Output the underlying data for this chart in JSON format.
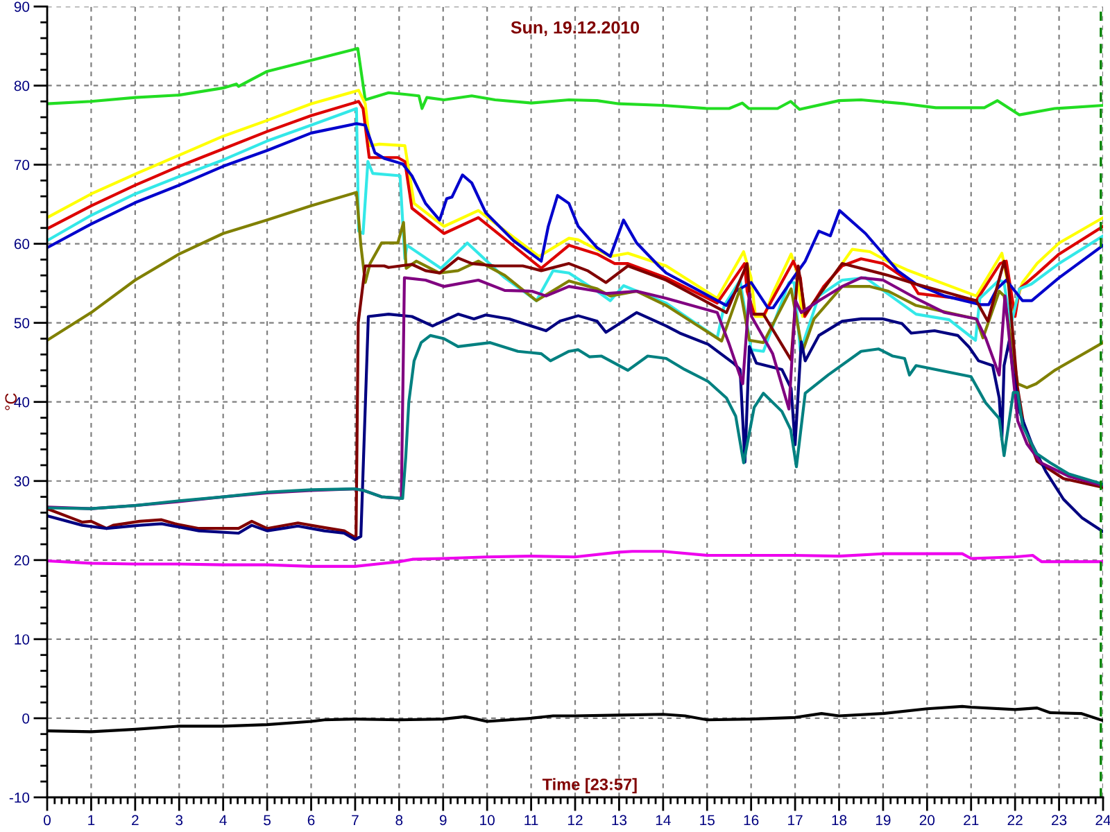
{
  "chart_data": {
    "type": "line",
    "title": "Sun, 19.12.2010",
    "xlabel": "Time [23:57]",
    "ylabel": "°C",
    "xlim": [
      0,
      24
    ],
    "ylim": [
      -10,
      90
    ],
    "xticks": [
      0,
      1,
      2,
      3,
      4,
      5,
      6,
      7,
      8,
      9,
      10,
      11,
      12,
      13,
      14,
      15,
      16,
      17,
      18,
      19,
      20,
      21,
      22,
      23,
      24,
      {
        "value": 0.17,
        "label": null
      },
      {
        "value": 0.33,
        "label": null
      },
      {
        "value": 0.5,
        "label": null
      },
      {
        "value": 0.67,
        "label": null
      },
      {
        "value": 0.83,
        "label": null
      },
      {
        "value": 1.17,
        "label": null
      },
      {
        "value": 1.33,
        "label": null
      },
      {
        "value": 1.5,
        "label": null
      },
      {
        "value": 1.67,
        "label": null
      },
      {
        "value": 1.83,
        "label": null
      },
      {
        "value": 2.17,
        "label": null
      },
      {
        "value": 2.33,
        "label": null
      },
      {
        "value": 2.5,
        "label": null
      },
      {
        "value": 2.67,
        "label": null
      },
      {
        "value": 2.83,
        "label": null
      },
      {
        "value": 3.17,
        "label": null
      },
      {
        "value": 3.33,
        "label": null
      },
      {
        "value": 3.5,
        "label": null
      },
      {
        "value": 3.67,
        "label": null
      },
      {
        "value": 3.83,
        "label": null
      },
      {
        "value": 4.17,
        "label": null
      },
      {
        "value": 4.33,
        "label": null
      },
      {
        "value": 4.5,
        "label": null
      },
      {
        "value": 4.67,
        "label": null
      },
      {
        "value": 4.83,
        "label": null
      },
      {
        "value": 5.17,
        "label": null
      },
      {
        "value": 5.33,
        "label": null
      },
      {
        "value": 5.5,
        "label": null
      },
      {
        "value": 5.67,
        "label": null
      },
      {
        "value": 5.83,
        "label": null
      },
      {
        "value": 6.17,
        "label": null
      },
      {
        "value": 6.33,
        "label": null
      },
      {
        "value": 6.5,
        "label": null
      },
      {
        "value": 6.67,
        "label": null
      },
      {
        "value": 6.83,
        "label": null
      },
      {
        "value": 7.17,
        "label": null
      },
      {
        "value": 7.33,
        "label": null
      },
      {
        "value": 7.5,
        "label": null
      },
      {
        "value": 7.67,
        "label": null
      },
      {
        "value": 7.83,
        "label": null
      },
      {
        "value": 8.17,
        "label": null
      },
      {
        "value": 8.33,
        "label": null
      },
      {
        "value": 8.5,
        "label": null
      },
      {
        "value": 8.67,
        "label": null
      },
      {
        "value": 8.83,
        "label": null
      },
      {
        "value": 9.17,
        "label": null
      },
      {
        "value": 9.33,
        "label": null
      },
      {
        "value": 9.5,
        "label": null
      },
      {
        "value": 9.67,
        "label": null
      },
      {
        "value": 9.83,
        "label": null
      },
      {
        "value": 10.17,
        "label": null
      },
      {
        "value": 10.33,
        "label": null
      },
      {
        "value": 10.5,
        "label": null
      },
      {
        "value": 10.67,
        "label": null
      },
      {
        "value": 10.83,
        "label": null
      },
      {
        "value": 11.17,
        "label": null
      },
      {
        "value": 11.33,
        "label": null
      },
      {
        "value": 11.5,
        "label": null
      },
      {
        "value": 11.67,
        "label": null
      },
      {
        "value": 11.83,
        "label": null
      },
      {
        "value": 12.17,
        "label": null
      },
      {
        "value": 12.33,
        "label": null
      },
      {
        "value": 12.5,
        "label": null
      },
      {
        "value": 12.67,
        "label": null
      },
      {
        "value": 12.83,
        "label": null
      },
      {
        "value": 13.17,
        "label": null
      },
      {
        "value": 13.33,
        "label": null
      },
      {
        "value": 13.5,
        "label": null
      },
      {
        "value": 13.67,
        "label": null
      },
      {
        "value": 13.83,
        "label": null
      },
      {
        "value": 14.17,
        "label": null
      },
      {
        "value": 14.33,
        "label": null
      },
      {
        "value": 14.5,
        "label": null
      },
      {
        "value": 14.67,
        "label": null
      },
      {
        "value": 14.83,
        "label": null
      },
      {
        "value": 15.17,
        "label": null
      },
      {
        "value": 15.33,
        "label": null
      },
      {
        "value": 15.5,
        "label": null
      },
      {
        "value": 15.67,
        "label": null
      },
      {
        "value": 15.83,
        "label": null
      },
      {
        "value": 16.17,
        "label": null
      },
      {
        "value": 16.33,
        "label": null
      },
      {
        "value": 16.5,
        "label": null
      },
      {
        "value": 16.67,
        "label": null
      },
      {
        "value": 16.83,
        "label": null
      },
      {
        "value": 17.17,
        "label": null
      },
      {
        "value": 17.33,
        "label": null
      },
      {
        "value": 17.5,
        "label": null
      },
      {
        "value": 17.67,
        "label": null
      },
      {
        "value": 17.83,
        "label": null
      },
      {
        "value": 18.17,
        "label": null
      },
      {
        "value": 18.33,
        "label": null
      },
      {
        "value": 18.5,
        "label": null
      },
      {
        "value": 18.67,
        "label": null
      },
      {
        "value": 18.83,
        "label": null
      },
      {
        "value": 19.17,
        "label": null
      },
      {
        "value": 19.33,
        "label": null
      },
      {
        "value": 19.5,
        "label": null
      },
      {
        "value": 19.67,
        "label": null
      },
      {
        "value": 19.83,
        "label": null
      },
      {
        "value": 20.17,
        "label": null
      },
      {
        "value": 20.33,
        "label": null
      },
      {
        "value": 20.5,
        "label": null
      },
      {
        "value": 20.67,
        "label": null
      },
      {
        "value": 20.83,
        "label": null
      },
      {
        "value": 21.17,
        "label": null
      },
      {
        "value": 21.33,
        "label": null
      },
      {
        "value": 21.5,
        "label": null
      },
      {
        "value": 21.67,
        "label": null
      },
      {
        "value": 21.83,
        "label": null
      },
      {
        "value": 22.17,
        "label": null
      },
      {
        "value": 22.33,
        "label": null
      },
      {
        "value": 22.5,
        "label": null
      },
      {
        "value": 22.67,
        "label": null
      },
      {
        "value": 22.83,
        "label": null
      },
      {
        "value": 23.17,
        "label": null
      },
      {
        "value": 23.33,
        "label": null
      },
      {
        "value": 23.5,
        "label": null
      },
      {
        "value": 23.67,
        "label": null
      },
      {
        "value": 23.83,
        "label": null
      }
    ],
    "yticks": [
      -10,
      0,
      10,
      20,
      30,
      40,
      50,
      60,
      70,
      80,
      90,
      {
        "value": -8,
        "label": null
      },
      {
        "value": -6,
        "label": null
      },
      {
        "value": -4,
        "label": null
      },
      {
        "value": -2,
        "label": null
      },
      {
        "value": 2,
        "label": null
      },
      {
        "value": 4,
        "label": null
      },
      {
        "value": 6,
        "label": null
      },
      {
        "value": 8,
        "label": null
      },
      {
        "value": 12,
        "label": null
      },
      {
        "value": 14,
        "label": null
      },
      {
        "value": 16,
        "label": null
      },
      {
        "value": 18,
        "label": null
      },
      {
        "value": 22,
        "label": null
      },
      {
        "value": 24,
        "label": null
      },
      {
        "value": 26,
        "label": null
      },
      {
        "value": 28,
        "label": null
      },
      {
        "value": 32,
        "label": null
      },
      {
        "value": 34,
        "label": null
      },
      {
        "value": 36,
        "label": null
      },
      {
        "value": 38,
        "label": null
      },
      {
        "value": 42,
        "label": null
      },
      {
        "value": 44,
        "label": null
      },
      {
        "value": 46,
        "label": null
      },
      {
        "value": 48,
        "label": null
      },
      {
        "value": 52,
        "label": null
      },
      {
        "value": 54,
        "label": null
      },
      {
        "value": 56,
        "label": null
      },
      {
        "value": 58,
        "label": null
      },
      {
        "value": 62,
        "label": null
      },
      {
        "value": 64,
        "label": null
      },
      {
        "value": 66,
        "label": null
      },
      {
        "value": 68,
        "label": null
      },
      {
        "value": 72,
        "label": null
      },
      {
        "value": 74,
        "label": null
      },
      {
        "value": 76,
        "label": null
      },
      {
        "value": 78,
        "label": null
      },
      {
        "value": 82,
        "label": null
      },
      {
        "value": 84,
        "label": null
      },
      {
        "value": 86,
        "label": null
      },
      {
        "value": 88,
        "label": null
      }
    ],
    "grid": true,
    "ref_lines": [
      {
        "axis": "x",
        "value": 23.95,
        "color": "#008000",
        "line_style": "dashed"
      }
    ],
    "series": [
      {
        "color": "#22dd22",
        "x": [
          0,
          1,
          2,
          3,
          4,
          4.3,
          4.35,
          5,
          6,
          7.06,
          7.23,
          7.76,
          8.13,
          8.45,
          8.52,
          8.63,
          9.02,
          9.65,
          10.18,
          11,
          11.86,
          12.5,
          13,
          14,
          15,
          15.5,
          15.8,
          15.95,
          16.6,
          16.9,
          17.1,
          18,
          18.5,
          19.5,
          20.2,
          21.3,
          21.6,
          22.1,
          22.9,
          24
        ],
        "values": [
          77.7,
          78.0,
          78.5,
          78.8,
          79.7,
          80.2,
          79.9,
          81.8,
          83.2,
          84.7,
          78.2,
          79.1,
          78.9,
          78.7,
          77.1,
          78.5,
          78.2,
          78.7,
          78.2,
          77.8,
          78.2,
          78.1,
          77.7,
          77.5,
          77.1,
          77.1,
          77.8,
          77.1,
          77.1,
          78.0,
          77.0,
          78.1,
          78.2,
          77.7,
          77.2,
          77.2,
          78.1,
          76.3,
          77.1,
          77.5
        ]
      },
      {
        "color": "#ffff00",
        "x": [
          0,
          1,
          2,
          3,
          4,
          5,
          6,
          7.08,
          7.23,
          7.34,
          7.55,
          8.13,
          8.34,
          9.02,
          9.8,
          11.18,
          11.86,
          12.07,
          12.8,
          13.2,
          14.07,
          15.23,
          15.83,
          16.0,
          16.1,
          16.3,
          16.49,
          16.91,
          17.03,
          17.17,
          17.54,
          18.07,
          18.3,
          18.7,
          19.1,
          19.54,
          21.12,
          21.7,
          21.96,
          22.17,
          22.5,
          23.0,
          24
        ],
        "values": [
          63.3,
          66.3,
          68.8,
          71.2,
          73.6,
          75.6,
          77.7,
          79.4,
          77.7,
          72.4,
          72.6,
          72.4,
          65.1,
          62.2,
          64.2,
          58.4,
          60.7,
          60.5,
          58.4,
          58.8,
          57.2,
          53.1,
          59.0,
          55.7,
          50.8,
          50.8,
          53.7,
          58.7,
          56.6,
          50.8,
          53.4,
          57.5,
          59.3,
          59.0,
          57.8,
          56.7,
          53.4,
          58.8,
          51.6,
          55.1,
          57.5,
          60.1,
          63.3
        ]
      },
      {
        "color": "#dd0000",
        "x": [
          0,
          1,
          2,
          3,
          4,
          5,
          6,
          7.08,
          7.18,
          7.32,
          7.97,
          8.13,
          8.29,
          9.02,
          9.8,
          11.23,
          11.86,
          12.5,
          12.9,
          13.2,
          14.07,
          15.23,
          15.85,
          15.91,
          16.07,
          16.3,
          16.96,
          17.12,
          17.22,
          17.65,
          18.07,
          18.5,
          19.0,
          19.64,
          19.8,
          21.12,
          21.66,
          21.8,
          22.0,
          22.1,
          22.5,
          23.0,
          24
        ],
        "values": [
          61.9,
          64.8,
          67.4,
          69.8,
          72.0,
          74.2,
          76.2,
          78.0,
          77.1,
          70.9,
          70.9,
          70.4,
          64.5,
          61.3,
          63.3,
          56.9,
          59.8,
          58.7,
          57.5,
          57.5,
          55.7,
          52.5,
          57.5,
          54.0,
          51.1,
          51.1,
          57.8,
          55.7,
          50.8,
          54.6,
          57.2,
          58.1,
          57.5,
          55.1,
          53.7,
          52.8,
          57.5,
          57.8,
          50.8,
          54.3,
          56.2,
          58.7,
          62.2
        ]
      },
      {
        "color": "#33e8e8",
        "x": [
          0,
          1,
          2,
          3,
          4,
          5,
          6,
          7.03,
          7.08,
          7.18,
          7.29,
          7.4,
          8.02,
          8.13,
          8.18,
          8.95,
          9.55,
          10.4,
          11.12,
          11.5,
          11.86,
          12.5,
          12.8,
          13.1,
          14.07,
          15.23,
          15.39,
          15.75,
          16.0,
          16.28,
          16.86,
          16.98,
          17.12,
          17.54,
          18.07,
          18.6,
          19.75,
          20.5,
          21.1,
          21.2,
          21.64,
          21.75,
          21.9,
          22.1,
          22.37,
          23.0,
          24
        ],
        "values": [
          60.4,
          63.6,
          66.3,
          68.5,
          70.6,
          73.0,
          75.0,
          77.1,
          61.6,
          61.3,
          70.4,
          68.9,
          68.6,
          58.1,
          59.8,
          56.9,
          60.1,
          55.7,
          52.8,
          56.6,
          56.3,
          54.0,
          52.8,
          54.7,
          52.5,
          48.1,
          52.2,
          55.4,
          46.6,
          46.4,
          55.1,
          55.1,
          46.4,
          53.4,
          55.4,
          55.7,
          51.1,
          50.4,
          47.8,
          53.1,
          55.4,
          55.1,
          49.6,
          54.3,
          54.9,
          57.5,
          61.0
        ]
      },
      {
        "color": "#0000cc",
        "x": [
          0,
          1,
          2,
          3,
          4,
          5,
          6,
          7.03,
          7.23,
          7.45,
          7.66,
          8.08,
          8.29,
          8.6,
          8.92,
          9.08,
          9.2,
          9.44,
          9.65,
          9.97,
          10.6,
          11.23,
          11.39,
          11.6,
          11.86,
          12.07,
          12.5,
          12.8,
          13.1,
          13.4,
          13.9,
          14.07,
          15.44,
          15.65,
          16.0,
          16.38,
          16.5,
          16.96,
          17.23,
          17.54,
          17.8,
          18.01,
          18.6,
          19.33,
          19.75,
          20.4,
          21.22,
          21.4,
          21.59,
          21.8,
          22.17,
          22.38,
          23.0,
          24
        ],
        "values": [
          59.5,
          62.5,
          65.2,
          67.4,
          69.8,
          71.8,
          74.0,
          75.2,
          75.0,
          71.5,
          70.8,
          70.1,
          68.6,
          65.1,
          63.0,
          65.7,
          65.9,
          68.7,
          67.7,
          63.9,
          60.4,
          57.8,
          62.2,
          66.1,
          65.1,
          62.2,
          59.5,
          58.4,
          63.0,
          60.1,
          57.2,
          56.3,
          52.2,
          54.0,
          55.1,
          51.9,
          51.9,
          55.7,
          57.8,
          61.6,
          61.0,
          64.2,
          61.3,
          56.6,
          54.9,
          53.4,
          52.3,
          52.3,
          54.3,
          55.4,
          52.8,
          52.8,
          55.7,
          59.8
        ]
      },
      {
        "color": "#808000",
        "x": [
          0,
          1,
          2,
          3,
          4,
          5,
          6,
          7.03,
          7.13,
          7.23,
          7.34,
          7.6,
          7.97,
          8.1,
          8.16,
          8.39,
          8.92,
          9.34,
          9.8,
          10.4,
          11.12,
          11.86,
          12.5,
          12.8,
          13.4,
          14.07,
          15.33,
          15.75,
          15.96,
          16.28,
          16.91,
          17.17,
          17.43,
          18.07,
          18.7,
          19.12,
          19.75,
          21.12,
          21.27,
          21.64,
          21.75,
          21.9,
          22.06,
          22.27,
          22.48,
          22.9,
          24
        ],
        "values": [
          47.8,
          51.3,
          55.4,
          58.7,
          61.3,
          63.0,
          64.8,
          66.5,
          59.8,
          55.1,
          57.5,
          60.1,
          60.1,
          62.7,
          56.9,
          57.8,
          56.3,
          56.6,
          57.8,
          56.0,
          52.8,
          55.3,
          54.3,
          53.4,
          54.0,
          52.2,
          47.7,
          54.3,
          47.8,
          47.5,
          54.3,
          46.4,
          50.5,
          54.6,
          54.6,
          54.0,
          52.2,
          50.5,
          48.1,
          54.0,
          53.4,
          48.1,
          42.3,
          41.8,
          42.3,
          44.0,
          47.5
        ]
      },
      {
        "color": "#800000",
        "x": [
          0,
          0.8,
          1.0,
          1.35,
          1.5,
          2.1,
          2.6,
          2.9,
          3.45,
          4.35,
          4.65,
          5.0,
          5.7,
          6.2,
          6.75,
          7.02,
          7.07,
          7.23,
          7.66,
          7.76,
          8.29,
          8.6,
          8.92,
          9.34,
          9.65,
          10.18,
          10.81,
          11.23,
          11.86,
          12.28,
          12.7,
          13.2,
          14.07,
          15.44,
          15.91,
          16.0,
          16.28,
          16.91,
          17.07,
          17.23,
          18.07,
          19.12,
          19.75,
          21.12,
          21.38,
          21.75,
          21.85,
          22.05,
          22.2,
          22.5,
          23.1,
          24
        ],
        "values": [
          26.5,
          24.8,
          24.9,
          24.0,
          24.4,
          24.9,
          25.1,
          24.6,
          24.0,
          24.0,
          24.9,
          24.0,
          24.7,
          24.2,
          23.7,
          22.8,
          50.0,
          57.2,
          57.2,
          57.0,
          57.4,
          56.6,
          56.3,
          58.2,
          57.5,
          57.2,
          57.2,
          56.6,
          57.5,
          56.6,
          55.1,
          57.2,
          55.4,
          51.3,
          57.5,
          51.1,
          51.1,
          45.3,
          57.2,
          51.1,
          57.5,
          56.0,
          54.9,
          52.8,
          50.2,
          57.8,
          55.0,
          42.0,
          37.0,
          32.5,
          30.3,
          29.2
        ]
      },
      {
        "color": "#000080",
        "x": [
          0,
          0.8,
          1.35,
          2.1,
          2.6,
          3.45,
          4.35,
          4.65,
          5.0,
          5.7,
          6.3,
          6.75,
          7.0,
          7.13,
          7.3,
          7.76,
          8.29,
          8.76,
          9.34,
          9.7,
          9.97,
          10.5,
          11.34,
          11.65,
          12.07,
          12.5,
          12.7,
          13.4,
          14.07,
          14.38,
          15.02,
          15.6,
          15.75,
          15.86,
          15.96,
          16.12,
          16.7,
          16.91,
          17.0,
          17.14,
          17.23,
          17.54,
          18.07,
          18.5,
          19.0,
          19.43,
          19.64,
          20.17,
          20.7,
          20.96,
          21.17,
          21.49,
          21.64,
          21.7,
          21.75,
          21.87,
          21.95,
          22.1,
          22.38,
          22.7,
          23.1,
          23.53,
          24
        ],
        "values": [
          25.6,
          24.4,
          24.0,
          24.4,
          24.6,
          23.7,
          23.4,
          24.4,
          23.7,
          24.3,
          23.7,
          23.4,
          22.6,
          23.0,
          50.8,
          51.1,
          50.8,
          49.6,
          51.1,
          50.5,
          51.0,
          50.5,
          49.0,
          50.2,
          50.9,
          50.2,
          48.8,
          51.3,
          49.6,
          48.7,
          47.3,
          44.9,
          44.1,
          32.4,
          47.0,
          44.9,
          44.1,
          41.7,
          34.6,
          47.6,
          45.2,
          48.4,
          50.2,
          50.5,
          50.5,
          49.9,
          48.7,
          49.0,
          48.4,
          46.9,
          45.2,
          44.6,
          40.5,
          35.3,
          44.6,
          47.8,
          44.0,
          38.8,
          34.7,
          31.2,
          27.7,
          25.3,
          23.6
        ]
      },
      {
        "color": "#800080",
        "x": [
          0,
          1,
          2,
          3,
          4,
          5,
          6,
          7,
          7.2,
          7.6,
          8.05,
          8.12,
          8.6,
          9.02,
          9.8,
          10.4,
          11.02,
          11.34,
          11.86,
          12.5,
          12.7,
          13.4,
          14.07,
          15.23,
          15.49,
          15.81,
          15.96,
          16.01,
          16.49,
          16.86,
          17.01,
          17.14,
          17.54,
          18.07,
          18.5,
          19.0,
          19.75,
          20.4,
          21.12,
          21.33,
          21.64,
          21.77,
          22.06,
          22.27,
          22.59,
          23.22,
          24
        ],
        "values": [
          26.7,
          26.5,
          26.9,
          27.4,
          28.0,
          28.5,
          28.8,
          29.0,
          28.8,
          28.0,
          27.8,
          55.7,
          55.4,
          54.6,
          55.4,
          54.1,
          54.0,
          53.4,
          54.6,
          54.0,
          53.7,
          54.0,
          53.1,
          51.3,
          47.5,
          42.3,
          53.7,
          50.8,
          46.1,
          39.1,
          52.8,
          51.3,
          52.8,
          54.6,
          55.7,
          55.4,
          53.1,
          51.3,
          50.5,
          48.1,
          43.4,
          53.4,
          37.6,
          34.7,
          32.3,
          30.6,
          29.4
        ]
      },
      {
        "color": "#008080",
        "x": [
          0,
          1,
          2,
          3,
          4,
          5,
          6,
          7,
          7.2,
          7.6,
          8.08,
          8.15,
          8.22,
          8.34,
          8.5,
          8.71,
          9.02,
          9.34,
          10.07,
          10.7,
          11.23,
          11.44,
          11.86,
          12.07,
          12.33,
          12.6,
          13.2,
          13.65,
          14.07,
          14.49,
          15.02,
          15.44,
          15.65,
          15.83,
          16.07,
          16.28,
          16.7,
          16.9,
          17.03,
          17.23,
          17.75,
          18.5,
          18.9,
          19.22,
          19.49,
          19.6,
          19.75,
          21.0,
          21.33,
          21.64,
          21.75,
          21.96,
          22.06,
          22.17,
          22.48,
          22.8,
          23.22,
          24
        ],
        "values": [
          26.6,
          26.5,
          26.9,
          27.5,
          28.0,
          28.6,
          28.9,
          29.0,
          28.8,
          28.0,
          27.8,
          33.0,
          40.0,
          45.2,
          47.5,
          48.4,
          48.0,
          47.0,
          47.5,
          46.4,
          46.1,
          45.2,
          46.4,
          46.6,
          45.7,
          45.8,
          44.0,
          45.8,
          45.5,
          44.1,
          42.6,
          40.5,
          38.2,
          32.3,
          39.3,
          41.1,
          38.8,
          36.5,
          31.8,
          41.1,
          43.4,
          46.4,
          46.7,
          45.8,
          45.5,
          43.4,
          44.6,
          43.2,
          39.9,
          37.9,
          33.2,
          41.2,
          41.2,
          37.0,
          33.5,
          32.3,
          30.9,
          29.6
        ]
      },
      {
        "color": "#ee00ee",
        "x": [
          0,
          1,
          2,
          3,
          4,
          5,
          6,
          7,
          7.5,
          8,
          8.3,
          9,
          10,
          11,
          12,
          13,
          13.3,
          14,
          15,
          16,
          17,
          18,
          19,
          20,
          20.8,
          21,
          22,
          22.4,
          22.6,
          24
        ],
        "values": [
          19.9,
          19.6,
          19.5,
          19.5,
          19.4,
          19.4,
          19.2,
          19.2,
          19.5,
          19.8,
          20.1,
          20.2,
          20.4,
          20.5,
          20.4,
          21.0,
          21.1,
          21.1,
          20.6,
          20.6,
          20.6,
          20.5,
          20.8,
          20.8,
          20.8,
          20.2,
          20.4,
          20.6,
          19.8,
          19.8
        ]
      },
      {
        "color": "#000000",
        "x": [
          0,
          1,
          2,
          3,
          4,
          5,
          6,
          6.3,
          7,
          8,
          9,
          9.5,
          10,
          11,
          11.5,
          12,
          13,
          14,
          14.5,
          15,
          16,
          17,
          17.6,
          18,
          19,
          20,
          20.8,
          21,
          22,
          22.5,
          22.8,
          23.5,
          24
        ],
        "values": [
          -1.6,
          -1.7,
          -1.4,
          -1.0,
          -1.0,
          -0.8,
          -0.4,
          -0.2,
          -0.1,
          -0.2,
          -0.1,
          0.2,
          -0.4,
          0.0,
          0.3,
          0.3,
          0.4,
          0.5,
          0.3,
          -0.2,
          -0.1,
          0.1,
          0.6,
          0.3,
          0.6,
          1.2,
          1.5,
          1.4,
          1.1,
          1.3,
          0.7,
          0.6,
          -0.3
        ]
      }
    ]
  }
}
